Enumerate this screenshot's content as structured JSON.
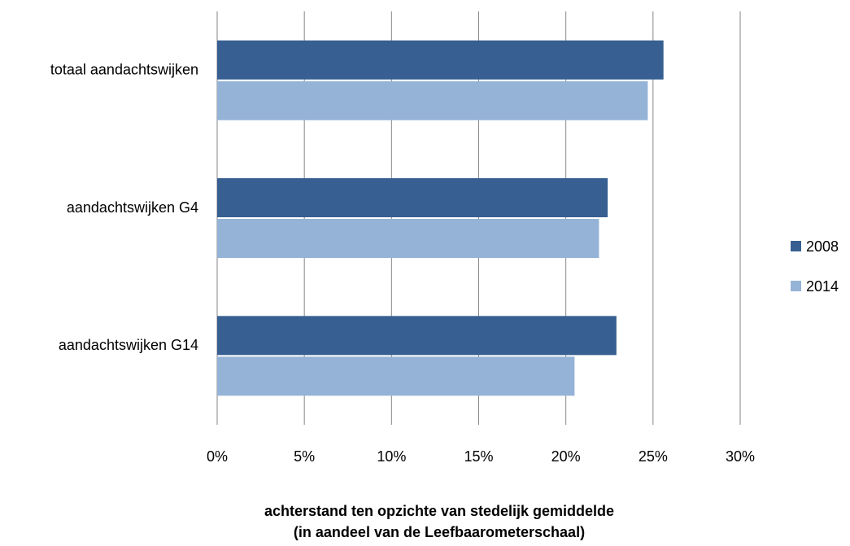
{
  "chart_data": {
    "type": "bar",
    "orientation": "horizontal",
    "categories": [
      "totaal aandachtswijken",
      "aandachtswijken G4",
      "aandachtswijken G14"
    ],
    "series": [
      {
        "name": "2008",
        "values": [
          25.6,
          22.4,
          22.9
        ],
        "color": "#375f91"
      },
      {
        "name": "2014",
        "values": [
          24.7,
          21.9,
          20.5
        ],
        "color": "#95b3d7"
      }
    ],
    "xlim": [
      0,
      30
    ],
    "xticks": [
      "0%",
      "5%",
      "10%",
      "15%",
      "20%",
      "25%",
      "30%"
    ],
    "xlabel": [
      "achterstand ten opzichte van stedelijk gemiddelde",
      "(in aandeel van de Leefbaarometerschaal)"
    ],
    "grid": "vertical",
    "legend_position": "right",
    "gridline_color": "#868686"
  }
}
